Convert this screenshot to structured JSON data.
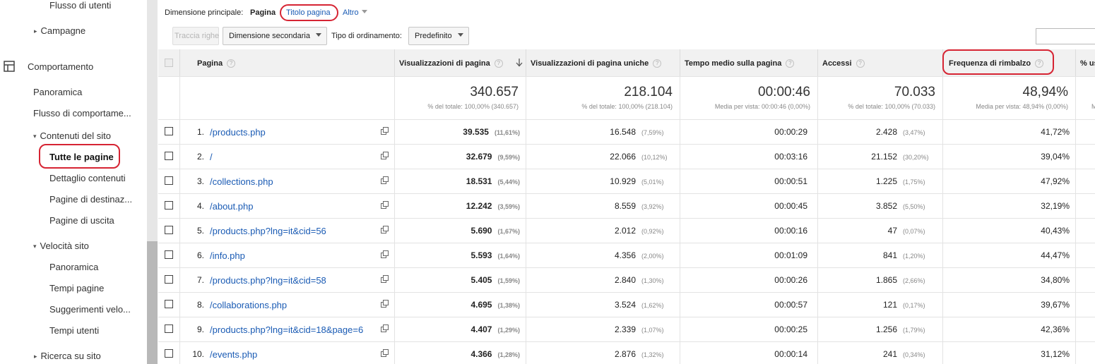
{
  "sidebar": {
    "items": [
      {
        "label": "Flusso di utenti"
      },
      {
        "label": "Campagne"
      },
      {
        "label": "Comportamento"
      },
      {
        "label": "Panoramica"
      },
      {
        "label": "Flusso di comportame..."
      },
      {
        "label": "Contenuti del sito"
      },
      {
        "label": "Tutte le pagine"
      },
      {
        "label": "Dettaglio contenuti"
      },
      {
        "label": "Pagine di destinaz..."
      },
      {
        "label": "Pagine di uscita"
      },
      {
        "label": "Velocità sito"
      },
      {
        "label": "Panoramica"
      },
      {
        "label": "Tempi pagine"
      },
      {
        "label": "Suggerimenti velo..."
      },
      {
        "label": "Tempi utenti"
      },
      {
        "label": "Ricerca su sito"
      }
    ]
  },
  "toolbar": {
    "primary_dimension_label": "Dimensione principale:",
    "dim_page": "Pagina",
    "dim_page_title": "Titolo pagina",
    "dim_other": "Altro",
    "plot_rows": "Traccia righe",
    "secondary_dimension": "Dimensione secondaria",
    "sort_type_label": "Tipo di ordinamento:",
    "sort_default": "Predefinito"
  },
  "table": {
    "headers": {
      "page": "Pagina",
      "pageviews": "Visualizzazioni di pagina",
      "unique_pageviews": "Visualizzazioni di pagina uniche",
      "avg_time": "Tempo medio sulla pagina",
      "entrances": "Accessi",
      "bounce_rate": "Frequenza di rimbalzo",
      "exit_pct": "% us"
    },
    "totals": {
      "pageviews": "340.657",
      "pageviews_sub": "% del totale: 100,00% (340.657)",
      "unique": "218.104",
      "unique_sub": "% del totale: 100,00% (218.104)",
      "avg_time": "00:00:46",
      "avg_time_sub": "Media per vista: 00:00:46 (0,00%)",
      "entrances": "70.033",
      "entrances_sub": "% del totale: 100,00% (70.033)",
      "bounce": "48,94%",
      "bounce_sub": "Media per vista: 48,94% (0,00%)",
      "exit_sub": "M"
    },
    "rows": [
      {
        "rank": "1.",
        "page": "/products.php",
        "pv": "39.535",
        "pv_pct": "(11,61%)",
        "upv": "16.548",
        "upv_pct": "(7,59%)",
        "time": "00:00:29",
        "acc": "2.428",
        "acc_pct": "(3,47%)",
        "bounce": "41,72%"
      },
      {
        "rank": "2.",
        "page": "/",
        "pv": "32.679",
        "pv_pct": "(9,59%)",
        "upv": "22.066",
        "upv_pct": "(10,12%)",
        "time": "00:03:16",
        "acc": "21.152",
        "acc_pct": "(30,20%)",
        "bounce": "39,04%"
      },
      {
        "rank": "3.",
        "page": "/collections.php",
        "pv": "18.531",
        "pv_pct": "(5,44%)",
        "upv": "10.929",
        "upv_pct": "(5,01%)",
        "time": "00:00:51",
        "acc": "1.225",
        "acc_pct": "(1,75%)",
        "bounce": "47,92%"
      },
      {
        "rank": "4.",
        "page": "/about.php",
        "pv": "12.242",
        "pv_pct": "(3,59%)",
        "upv": "8.559",
        "upv_pct": "(3,92%)",
        "time": "00:00:45",
        "acc": "3.852",
        "acc_pct": "(5,50%)",
        "bounce": "32,19%"
      },
      {
        "rank": "5.",
        "page": "/products.php?lng=it&cid=56",
        "pv": "5.690",
        "pv_pct": "(1,67%)",
        "upv": "2.012",
        "upv_pct": "(0,92%)",
        "time": "00:00:16",
        "acc": "47",
        "acc_pct": "(0,07%)",
        "bounce": "40,43%"
      },
      {
        "rank": "6.",
        "page": "/info.php",
        "pv": "5.593",
        "pv_pct": "(1,64%)",
        "upv": "4.356",
        "upv_pct": "(2,00%)",
        "time": "00:01:09",
        "acc": "841",
        "acc_pct": "(1,20%)",
        "bounce": "44,47%"
      },
      {
        "rank": "7.",
        "page": "/products.php?lng=it&cid=58",
        "pv": "5.405",
        "pv_pct": "(1,59%)",
        "upv": "2.840",
        "upv_pct": "(1,30%)",
        "time": "00:00:26",
        "acc": "1.865",
        "acc_pct": "(2,66%)",
        "bounce": "34,80%"
      },
      {
        "rank": "8.",
        "page": "/collaborations.php",
        "pv": "4.695",
        "pv_pct": "(1,38%)",
        "upv": "3.524",
        "upv_pct": "(1,62%)",
        "time": "00:00:57",
        "acc": "121",
        "acc_pct": "(0,17%)",
        "bounce": "39,67%"
      },
      {
        "rank": "9.",
        "page": "/products.php?lng=it&cid=18&page=6",
        "pv": "4.407",
        "pv_pct": "(1,29%)",
        "upv": "2.339",
        "upv_pct": "(1,07%)",
        "time": "00:00:25",
        "acc": "1.256",
        "acc_pct": "(1,79%)",
        "bounce": "42,36%"
      },
      {
        "rank": "10.",
        "page": "/events.php",
        "pv": "4.366",
        "pv_pct": "(1,28%)",
        "upv": "2.876",
        "upv_pct": "(1,32%)",
        "time": "00:00:14",
        "acc": "241",
        "acc_pct": "(0,34%)",
        "bounce": "31,12%"
      }
    ]
  },
  "colors": {
    "link": "#1a5bb4",
    "highlight": "#d62433"
  },
  "icons": {
    "sort": "sort-down-arrow-icon",
    "open_page": "open-in-new-icon",
    "section": "behavior-section-icon"
  }
}
